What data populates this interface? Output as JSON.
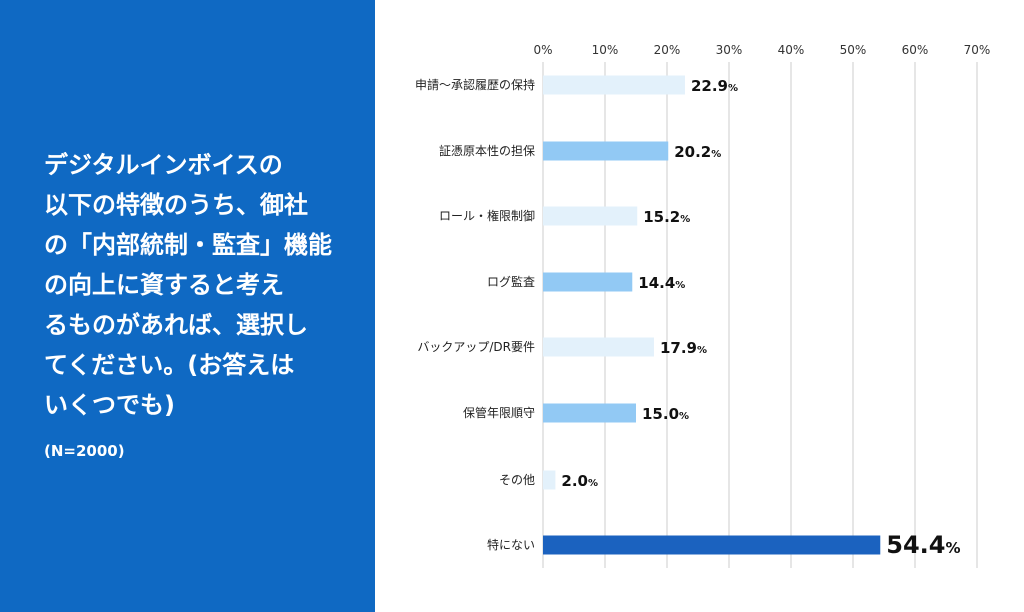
{
  "question": {
    "lines": [
      "デジタルインボイスの",
      "以下の特徴のうち、御社",
      "の「内部統制・監査」機能",
      "の向上に資すると考え",
      "るものがあれば、選択し",
      "てください。(お答えは",
      "いくつでも)"
    ],
    "sample": "(N=2000)"
  },
  "colors": {
    "panel": "#0f69c3",
    "bar_light": "#e3f1fb",
    "bar_mid": "#92c9f4",
    "bar_dark": "#1b62bf",
    "grid": "#cccccc"
  },
  "chart_data": {
    "type": "bar",
    "orientation": "horizontal",
    "categories": [
      "申請〜承認履歴の保持",
      "証憑原本性の担保",
      "ロール・権限制御",
      "ログ監査",
      "バックアップ/DR要件",
      "保管年限順守",
      "その他",
      "特にない"
    ],
    "values": [
      22.9,
      20.2,
      15.2,
      14.4,
      17.9,
      15.0,
      2.0,
      54.4
    ],
    "value_labels": [
      "22.9",
      "20.2",
      "15.2",
      "14.4",
      "17.9",
      "15.0",
      "2.0",
      "54.4"
    ],
    "value_suffix": "%",
    "bar_colors": [
      "#e3f1fb",
      "#92c9f4",
      "#e3f1fb",
      "#92c9f4",
      "#e3f1fb",
      "#92c9f4",
      "#e3f1fb",
      "#1b62bf"
    ],
    "xlim": [
      0,
      70
    ],
    "xticks": [
      "0%",
      "10%",
      "20%",
      "30%",
      "40%",
      "50%",
      "60%",
      "70%"
    ],
    "tick_values": [
      0,
      10,
      20,
      30,
      40,
      50,
      60,
      70
    ],
    "axis_position": "top",
    "grid": true
  }
}
